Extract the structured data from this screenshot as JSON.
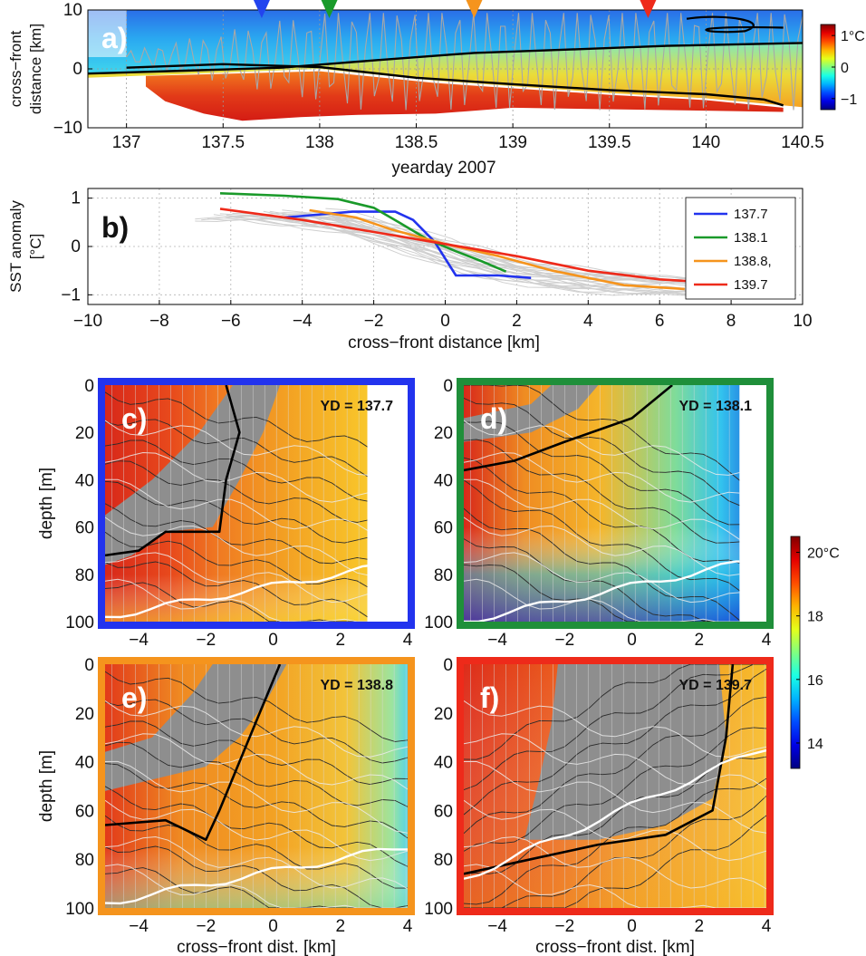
{
  "chart_data": [
    {
      "panel": "a)",
      "type": "heatmap",
      "xlabel": "yearday 2007",
      "ylabel": [
        "cross−front",
        "distance  [km]"
      ],
      "xlim": [
        136.8,
        140.5
      ],
      "ylim": [
        -10,
        10
      ],
      "xticks": [
        137,
        137.5,
        138,
        138.5,
        139,
        139.5,
        140,
        140.5
      ],
      "xtick_labels": [
        "137",
        "137.5",
        "138",
        "138.5",
        "139",
        "139.5",
        "140",
        "140.5"
      ],
      "yticks": [
        -10,
        0,
        10
      ],
      "ytick_labels": [
        "−10",
        "0",
        "10"
      ],
      "grid": true,
      "colorbar": {
        "ticks": [
          1,
          0,
          -1
        ],
        "tick_labels": [
          "1°C",
          "0",
          "−1"
        ],
        "cmap": "jet"
      },
      "markers": [
        {
          "x": 137.7,
          "color": "#2244ee"
        },
        {
          "x": 138.05,
          "color": "#1a9a2a"
        },
        {
          "x": 138.8,
          "color": "#f5941d"
        },
        {
          "x": 139.7,
          "color": "#ee2a1a"
        }
      ],
      "contour_warm_edge": {
        "x": [
          137.0,
          137.5,
          138.0,
          138.5,
          139.0,
          139.5,
          140.0,
          140.3,
          140.4
        ],
        "y": [
          0.2,
          0.8,
          0.3,
          -1.5,
          -2.6,
          -3.6,
          -4.3,
          -5.2,
          -6.2
        ]
      },
      "contour_cold_edge": {
        "x": [
          136.8,
          137.3,
          137.8,
          138.3,
          138.8,
          139.3,
          139.8,
          140.5
        ],
        "y": [
          -0.8,
          -0.3,
          0.2,
          1.5,
          2.7,
          3.3,
          3.9,
          4.4
        ]
      }
    },
    {
      "panel": "b)",
      "type": "line",
      "xlabel": "cross−front distance  [km]",
      "ylabel": [
        "SST anomaly",
        "[°C]"
      ],
      "xlim": [
        -10,
        10
      ],
      "ylim": [
        -1.2,
        1.2
      ],
      "xticks": [
        -10,
        -8,
        -6,
        -4,
        -2,
        0,
        2,
        4,
        6,
        8,
        10
      ],
      "xtick_labels": [
        "−10",
        "−8",
        "−6",
        "−4",
        "−2",
        "0",
        "2",
        "4",
        "6",
        "8",
        "10"
      ],
      "yticks": [
        1,
        0,
        -1
      ],
      "ytick_labels": [
        "1",
        "0",
        "−1"
      ],
      "grid": true,
      "legend_position": "top-right",
      "series": [
        {
          "name": "137.7",
          "color": "#2233ee",
          "x": [
            -4.5,
            -2.6,
            -1.4,
            -0.9,
            -0.3,
            0.3,
            0.7,
            1.5,
            2.4
          ],
          "y": [
            0.6,
            0.72,
            0.72,
            0.55,
            0.1,
            -0.6,
            -0.6,
            -0.6,
            -0.65
          ]
        },
        {
          "name": "138.1",
          "color": "#1a9a2a",
          "x": [
            -6.3,
            -4.5,
            -3,
            -2,
            -1.3,
            -0.5,
            0.3,
            1,
            1.7
          ],
          "y": [
            1.1,
            1.05,
            0.98,
            0.8,
            0.5,
            0.15,
            -0.1,
            -0.3,
            -0.52
          ]
        },
        {
          "name": "138.8,",
          "color": "#f5941d",
          "x": [
            -3.8,
            -2.5,
            -1.5,
            0,
            1.5,
            3,
            5,
            6.7
          ],
          "y": [
            0.75,
            0.6,
            0.35,
            0.05,
            -0.2,
            -0.5,
            -0.8,
            -0.88
          ]
        },
        {
          "name": "139.7",
          "color": "#ee2a1a",
          "x": [
            -6.3,
            -4,
            -2,
            0,
            2,
            4,
            6,
            8.2
          ],
          "y": [
            0.78,
            0.55,
            0.3,
            0.05,
            -0.2,
            -0.5,
            -0.68,
            -0.78
          ]
        }
      ]
    },
    {
      "panel": "c)",
      "type": "heatmap",
      "annotation": "YD = 137.7",
      "frame_color": "#2233ee",
      "xlim": [
        -5,
        4
      ],
      "ylim": [
        100,
        0
      ],
      "xticks": [
        -4,
        -2,
        0,
        2,
        4
      ],
      "xtick_labels": [
        "−4",
        "−2",
        "0",
        "2",
        "4"
      ],
      "yticks": [
        0,
        20,
        40,
        60,
        80,
        100
      ],
      "ytick_labels": [
        "0",
        "20",
        "40",
        "60",
        "80",
        "100"
      ],
      "ylabel": "depth  [m]",
      "xlabel": "",
      "data_xmax": 2.8
    },
    {
      "panel": "d)",
      "type": "heatmap",
      "annotation": "YD = 138.1",
      "frame_color": "#1f8f3a",
      "xlim": [
        -5,
        4
      ],
      "ylim": [
        100,
        0
      ],
      "xticks": [
        -4,
        -2,
        0,
        2,
        4
      ],
      "xtick_labels": [
        "−4",
        "−2",
        "0",
        "2",
        "4"
      ],
      "yticks": [
        0,
        20,
        40,
        60,
        80,
        100
      ],
      "ytick_labels": [
        "0",
        "20",
        "40",
        "60",
        "80",
        "100"
      ],
      "ylabel": "",
      "xlabel": "",
      "data_xmax": 3.2
    },
    {
      "panel": "e)",
      "type": "heatmap",
      "annotation": "YD = 138.8",
      "frame_color": "#f5941d",
      "xlim": [
        -5,
        4
      ],
      "ylim": [
        100,
        0
      ],
      "xticks": [
        -4,
        -2,
        0,
        2,
        4
      ],
      "xtick_labels": [
        "−4",
        "−2",
        "0",
        "2",
        "4"
      ],
      "yticks": [
        0,
        20,
        40,
        60,
        80,
        100
      ],
      "ytick_labels": [
        "0",
        "20",
        "40",
        "60",
        "80",
        "100"
      ],
      "ylabel": "depth  [m]",
      "xlabel": "cross−front dist.  [km]",
      "data_xmax": 4
    },
    {
      "panel": "f)",
      "type": "heatmap",
      "annotation": "YD = 139.7",
      "frame_color": "#ee2a1a",
      "xlim": [
        -5,
        4
      ],
      "ylim": [
        100,
        0
      ],
      "xticks": [
        -4,
        -2,
        0,
        2,
        4
      ],
      "xtick_labels": [
        "−4",
        "−2",
        "0",
        "2",
        "4"
      ],
      "yticks": [
        0,
        20,
        40,
        60,
        80,
        100
      ],
      "ytick_labels": [
        "0",
        "20",
        "40",
        "60",
        "80",
        "100"
      ],
      "ylabel": "",
      "xlabel": "cross−front dist.  [km]",
      "data_xmax": 4
    },
    {
      "panel": "colorbar",
      "type": "heatmap",
      "cmap": "jet",
      "range": [
        13.2,
        20.5
      ],
      "ticks": [
        20,
        18,
        16,
        14
      ],
      "tick_labels": [
        "20°C",
        "18",
        "16",
        "14"
      ]
    }
  ]
}
